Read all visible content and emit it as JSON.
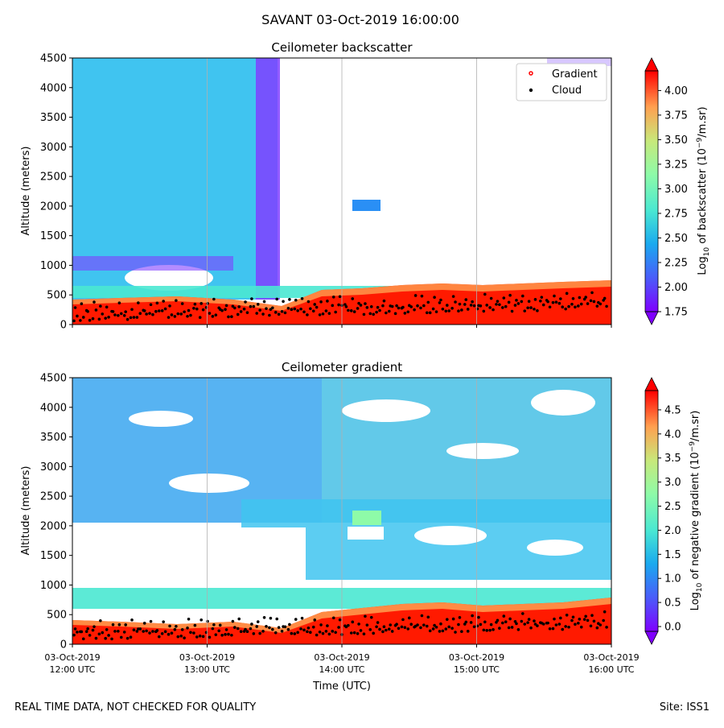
{
  "figure": {
    "suptitle": "SAVANT 03-Oct-2019 16:00:00",
    "footer_left": "REAL TIME DATA, NOT CHECKED FOR QUALITY",
    "footer_right": "Site: ISS1"
  },
  "chart_data": [
    {
      "type": "heatmap",
      "title": "Ceilometer backscatter",
      "xlabel": "",
      "ylabel": "Altitude (meters)",
      "ylim": [
        0,
        4500
      ],
      "yticks": [
        0,
        500,
        1000,
        1500,
        2000,
        2500,
        3000,
        3500,
        4000,
        4500
      ],
      "xlim_hours": [
        12,
        16
      ],
      "grid": "vertical lines at each hour",
      "colorbar": {
        "label_parts": [
          "Log",
          "10",
          " of backscatter (10",
          "−9",
          "/m.sr)"
        ],
        "range": [
          1.75,
          4.2
        ],
        "ticks": [
          "1.75",
          "2.00",
          "2.25",
          "2.50",
          "2.75",
          "3.00",
          "3.25",
          "3.50",
          "3.75",
          "4.00"
        ],
        "colormap": "rainbow",
        "extend": "both"
      },
      "legend": {
        "placement": "upper-right",
        "entries": [
          {
            "label": "Gradient",
            "color": "#ff0000"
          },
          {
            "label": "Cloud",
            "color": "#000000"
          }
        ]
      }
    },
    {
      "type": "heatmap",
      "title": "Ceilometer gradient",
      "xlabel": "Time (UTC)",
      "ylabel": "Altitude (meters)",
      "ylim": [
        0,
        4500
      ],
      "yticks": [
        0,
        500,
        1000,
        1500,
        2000,
        2500,
        3000,
        3500,
        4000,
        4500
      ],
      "xlim_hours": [
        12,
        16
      ],
      "xticks": [
        {
          "date": "03-Oct-2019",
          "time": "12:00 UTC"
        },
        {
          "date": "03-Oct-2019",
          "time": "13:00 UTC"
        },
        {
          "date": "03-Oct-2019",
          "time": "14:00 UTC"
        },
        {
          "date": "03-Oct-2019",
          "time": "15:00 UTC"
        },
        {
          "date": "03-Oct-2019",
          "time": "16:00 UTC"
        }
      ],
      "grid": "vertical lines at each hour",
      "colorbar": {
        "label_parts": [
          "Log",
          "10",
          " of negative gradient (10",
          "−9",
          "/m.sr)"
        ],
        "range": [
          -0.1,
          4.9
        ],
        "ticks": [
          "0.0",
          "0.5",
          "1.0",
          "1.5",
          "2.0",
          "2.5",
          "3.0",
          "3.5",
          "4.0",
          "4.5"
        ],
        "colormap": "rainbow",
        "extend": "both"
      }
    }
  ]
}
